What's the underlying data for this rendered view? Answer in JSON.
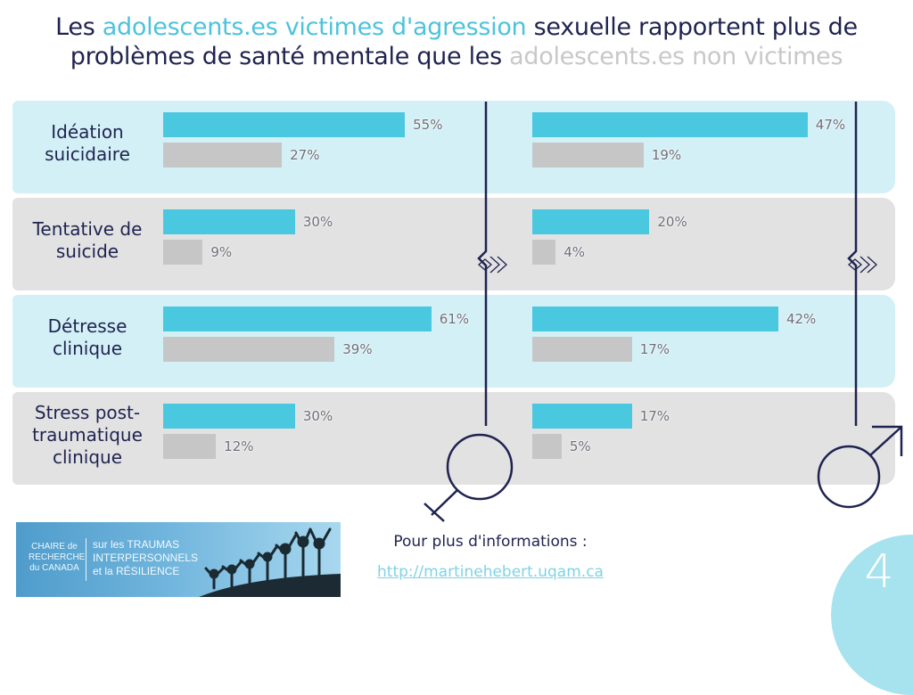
{
  "title": {
    "part1": "Les ",
    "victims_phrase": "adolescents.es victimes d'agression",
    "part2": " sexuelle rapportent plus de",
    "part3": "problèmes de santé mentale que les ",
    "non_victims_phrase": "adolescents.es non victimes"
  },
  "colors": {
    "victim": "#4ac8e0",
    "non_victim": "#c6c6c6",
    "navy": "#1f2350",
    "band_blue": "#d3f0f6",
    "band_gray": "#e2e2e2"
  },
  "chart_data": {
    "type": "bar",
    "orientation": "horizontal",
    "title": "Les adolescents.es victimes d'agression sexuelle rapportent plus de problèmes de santé mentale que les adolescents.es non victimes",
    "categories": [
      "Idéation suicidaire",
      "Tentative de suicide",
      "Détresse clinique",
      "Stress post-traumatique clinique"
    ],
    "category_lines": [
      [
        "Idéation",
        "suicidaire"
      ],
      [
        "Tentative de",
        "suicide"
      ],
      [
        "Détresse",
        "clinique"
      ],
      [
        "Stress post-",
        "traumatique",
        "clinique"
      ]
    ],
    "panels": [
      {
        "name": "Filles",
        "symbol": "female-symbol",
        "series": [
          {
            "name": "adolescents.es victimes d'agression",
            "values": [
              55,
              30,
              61,
              30
            ]
          },
          {
            "name": "adolescents.es non victimes",
            "values": [
              27,
              9,
              39,
              12
            ]
          }
        ]
      },
      {
        "name": "Garçons",
        "symbol": "male-symbol",
        "series": [
          {
            "name": "adolescents.es victimes d'agression",
            "values": [
              47,
              20,
              42,
              17
            ]
          },
          {
            "name": "adolescents.es non victimes",
            "values": [
              19,
              4,
              17,
              5
            ]
          }
        ]
      }
    ],
    "value_suffix": "%",
    "xlabel": "",
    "ylabel": "",
    "grid": false
  },
  "logo": {
    "left_lines": [
      "CHAIRE de",
      "RECHERCHE",
      "du CANADA"
    ],
    "right_lines": [
      "sur les TRAUMAS",
      "INTERPERSONNELS",
      "et la RÉSILIENCE"
    ]
  },
  "footer": {
    "info_label": "Pour plus d'informations :",
    "link": "http://martinehebert.uqam.ca"
  },
  "page_number": "4"
}
